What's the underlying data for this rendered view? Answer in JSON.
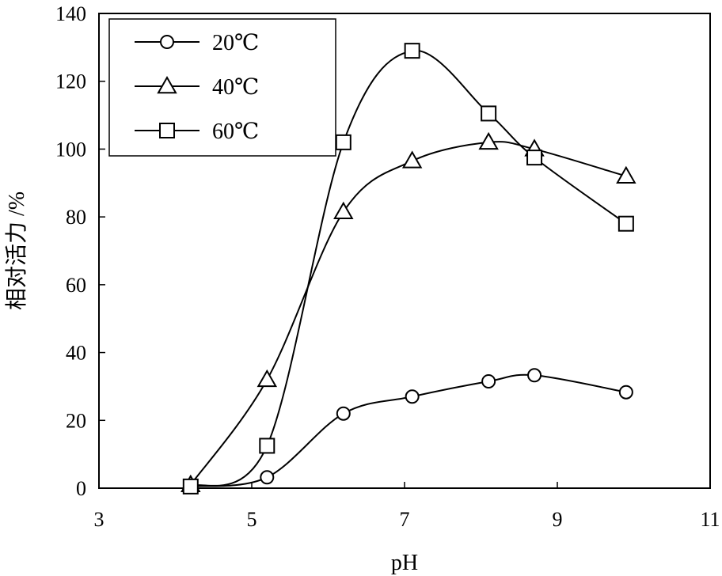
{
  "chart_data": {
    "type": "line",
    "xlabel": "pH",
    "ylabel": "相对活力 /%",
    "xlim": [
      3,
      11
    ],
    "ylim": [
      0,
      140
    ],
    "xticks": [
      3,
      5,
      7,
      9,
      11
    ],
    "yticks": [
      0,
      20,
      40,
      60,
      80,
      100,
      120,
      140
    ],
    "grid": false,
    "legend_position": "top-left",
    "series": [
      {
        "name": "20℃",
        "marker": "circle",
        "color": "#000000",
        "x": [
          4.2,
          5.2,
          6.2,
          7.1,
          8.1,
          8.7,
          9.9
        ],
        "y": [
          0.5,
          3.2,
          22,
          27,
          31.5,
          33.3,
          28.3
        ]
      },
      {
        "name": "40℃",
        "marker": "triangle",
        "color": "#000000",
        "x": [
          4.2,
          5.2,
          6.2,
          7.1,
          8.1,
          8.7,
          9.9
        ],
        "y": [
          1,
          32,
          81.5,
          96.5,
          102,
          100,
          92
        ]
      },
      {
        "name": "60℃",
        "marker": "square",
        "color": "#000000",
        "x": [
          4.2,
          5.2,
          6.2,
          7.1,
          8.1,
          8.7,
          9.9
        ],
        "y": [
          0.5,
          12.5,
          102,
          129,
          110.5,
          97.5,
          78
        ]
      }
    ]
  }
}
